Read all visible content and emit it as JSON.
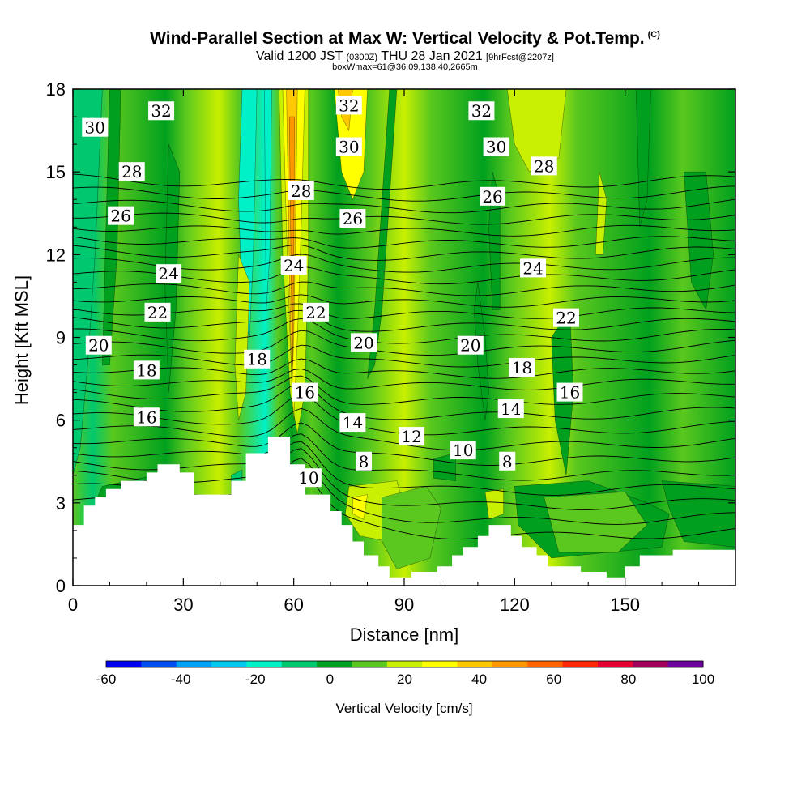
{
  "header": {
    "title": "Wind-Parallel Section at Max W: Vertical Velocity & Pot.Temp.",
    "copyright": "(C)",
    "valid_prefix": "Valid 1200 JST",
    "valid_utc": "(0300Z)",
    "valid_date": "THU 28 Jan 2021",
    "forecast": "[9hrFcst@2207z]",
    "meta": "boxWmax=61@36.09,138.40,2665m"
  },
  "chart_data": {
    "type": "contour",
    "xlabel": "Distance [nm]",
    "ylabel": "Height [Kft MSL]",
    "xlim": [
      0,
      180
    ],
    "ylim": [
      0,
      18
    ],
    "x_ticks": [
      "0",
      "30",
      "60",
      "90",
      "120",
      "150"
    ],
    "y_ticks": [
      "0",
      "3",
      "6",
      "9",
      "12",
      "15",
      "18"
    ],
    "colorbar": {
      "title": "Vertical Velocity [cm/s]",
      "tick_labels": [
        "-60",
        "-40",
        "-20",
        "0",
        "20",
        "40",
        "60",
        "80",
        "100"
      ],
      "levels": [
        -60,
        -50,
        -40,
        -30,
        -20,
        -10,
        0,
        10,
        20,
        30,
        40,
        50,
        60,
        70,
        80,
        90,
        100
      ],
      "colors": [
        "#0000f0",
        "#0050f0",
        "#00a0f5",
        "#00c8f0",
        "#00f0c8",
        "#00c86e",
        "#00a01e",
        "#5ac81e",
        "#c8f000",
        "#ffff00",
        "#ffc800",
        "#ff9600",
        "#ff6400",
        "#ff2800",
        "#e60032",
        "#a0005a",
        "#6e00a0"
      ]
    },
    "theta_contour_labels": [
      {
        "text": "32",
        "x": 24,
        "y": 17.2
      },
      {
        "text": "32",
        "x": 75,
        "y": 17.4
      },
      {
        "text": "32",
        "x": 111,
        "y": 17.2
      },
      {
        "text": "30",
        "x": 6,
        "y": 16.6
      },
      {
        "text": "30",
        "x": 75,
        "y": 15.9
      },
      {
        "text": "30",
        "x": 115,
        "y": 15.9
      },
      {
        "text": "28",
        "x": 16,
        "y": 15.0
      },
      {
        "text": "28",
        "x": 62,
        "y": 14.3
      },
      {
        "text": "28",
        "x": 128,
        "y": 15.2
      },
      {
        "text": "26",
        "x": 13,
        "y": 13.4
      },
      {
        "text": "26",
        "x": 76,
        "y": 13.3
      },
      {
        "text": "26",
        "x": 114,
        "y": 14.1
      },
      {
        "text": "24",
        "x": 26,
        "y": 11.3
      },
      {
        "text": "24",
        "x": 60,
        "y": 11.6
      },
      {
        "text": "24",
        "x": 125,
        "y": 11.5
      },
      {
        "text": "22",
        "x": 23,
        "y": 9.9
      },
      {
        "text": "22",
        "x": 66,
        "y": 9.9
      },
      {
        "text": "22",
        "x": 134,
        "y": 9.7
      },
      {
        "text": "20",
        "x": 7,
        "y": 8.7
      },
      {
        "text": "20",
        "x": 79,
        "y": 8.8
      },
      {
        "text": "20",
        "x": 108,
        "y": 8.7
      },
      {
        "text": "18",
        "x": 20,
        "y": 7.8
      },
      {
        "text": "18",
        "x": 50,
        "y": 8.2
      },
      {
        "text": "18",
        "x": 122,
        "y": 7.9
      },
      {
        "text": "16",
        "x": 20,
        "y": 6.1
      },
      {
        "text": "16",
        "x": 63,
        "y": 7.0
      },
      {
        "text": "16",
        "x": 135,
        "y": 7.0
      },
      {
        "text": "14",
        "x": 76,
        "y": 5.9
      },
      {
        "text": "14",
        "x": 119,
        "y": 6.4
      },
      {
        "text": "12",
        "x": 92,
        "y": 5.4
      },
      {
        "text": "10",
        "x": 106,
        "y": 4.9
      },
      {
        "text": "10",
        "x": 64,
        "y": 3.9
      },
      {
        "text": "8",
        "x": 79,
        "y": 4.5
      },
      {
        "text": "8",
        "x": 118,
        "y": 4.5
      }
    ],
    "terrain": [
      [
        0,
        2.2
      ],
      [
        3,
        2.2
      ],
      [
        3,
        2.9
      ],
      [
        6,
        2.9
      ],
      [
        6,
        3.2
      ],
      [
        9,
        3.2
      ],
      [
        9,
        3.5
      ],
      [
        13,
        3.5
      ],
      [
        13,
        3.8
      ],
      [
        20,
        3.8
      ],
      [
        20,
        4.1
      ],
      [
        23,
        4.1
      ],
      [
        23,
        4.4
      ],
      [
        29,
        4.4
      ],
      [
        29,
        4.1
      ],
      [
        33,
        4.1
      ],
      [
        33,
        3.3
      ],
      [
        43,
        3.3
      ],
      [
        43,
        3.8
      ],
      [
        47,
        3.8
      ],
      [
        47,
        4.8
      ],
      [
        53,
        4.8
      ],
      [
        53,
        5.4
      ],
      [
        59,
        5.4
      ],
      [
        59,
        4.4
      ],
      [
        63,
        4.4
      ],
      [
        63,
        3.3
      ],
      [
        70,
        3.3
      ],
      [
        70,
        2.7
      ],
      [
        73,
        2.7
      ],
      [
        73,
        2.2
      ],
      [
        76,
        2.2
      ],
      [
        76,
        1.6
      ],
      [
        79,
        1.6
      ],
      [
        79,
        1.1
      ],
      [
        83,
        1.1
      ],
      [
        83,
        0.7
      ],
      [
        86,
        0.7
      ],
      [
        86,
        0.3
      ],
      [
        92,
        0.3
      ],
      [
        92,
        0.5
      ],
      [
        99,
        0.5
      ],
      [
        99,
        0.7
      ],
      [
        103,
        0.7
      ],
      [
        103,
        1.1
      ],
      [
        106,
        1.1
      ],
      [
        106,
        1.4
      ],
      [
        110,
        1.4
      ],
      [
        110,
        1.8
      ],
      [
        113,
        1.8
      ],
      [
        113,
        2.2
      ],
      [
        119,
        2.2
      ],
      [
        119,
        1.8
      ],
      [
        122,
        1.8
      ],
      [
        122,
        1.4
      ],
      [
        126,
        1.4
      ],
      [
        126,
        1.1
      ],
      [
        129,
        1.1
      ],
      [
        129,
        0.7
      ],
      [
        138,
        0.7
      ],
      [
        138,
        0.5
      ],
      [
        145,
        0.5
      ],
      [
        145,
        0.3
      ],
      [
        150,
        0.3
      ],
      [
        150,
        0.7
      ],
      [
        154,
        0.7
      ],
      [
        154,
        1.1
      ],
      [
        163,
        1.1
      ],
      [
        163,
        1.3
      ],
      [
        180,
        1.3
      ]
    ]
  }
}
